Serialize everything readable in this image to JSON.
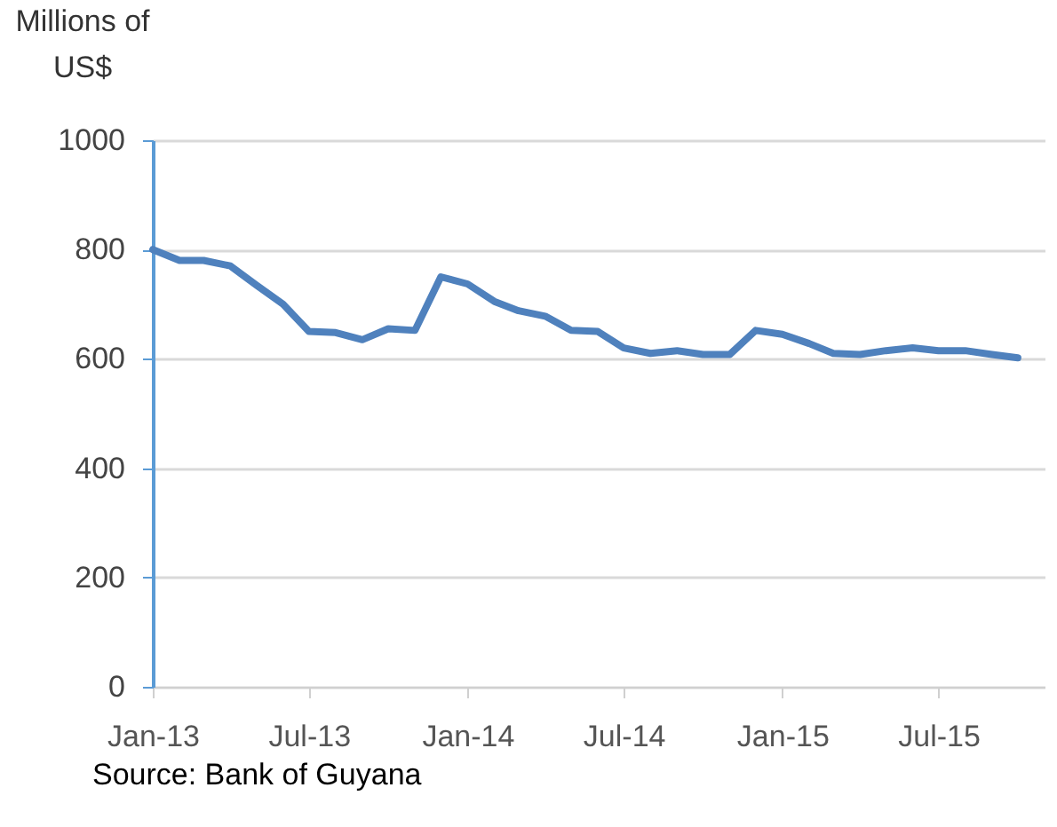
{
  "chart_data": {
    "type": "line",
    "ylabel": "Millions of US$",
    "x": [
      "2013-01",
      "2013-02",
      "2013-03",
      "2013-04",
      "2013-05",
      "2013-06",
      "2013-07",
      "2013-08",
      "2013-09",
      "2013-10",
      "2013-11",
      "2013-12",
      "2014-01",
      "2014-02",
      "2014-03",
      "2014-04",
      "2014-05",
      "2014-06",
      "2014-07",
      "2014-08",
      "2014-09",
      "2014-10",
      "2014-11",
      "2014-12",
      "2015-01",
      "2015-02",
      "2015-03",
      "2015-04",
      "2015-05",
      "2015-06",
      "2015-07",
      "2015-08",
      "2015-09",
      "2015-10"
    ],
    "series": [
      {
        "color": "#4f81bd",
        "values": [
          800,
          780,
          780,
          770,
          735,
          700,
          650,
          648,
          635,
          655,
          652,
          750,
          737,
          705,
          688,
          678,
          652,
          650,
          620,
          610,
          615,
          608,
          608,
          652,
          645,
          628,
          610,
          608,
          615,
          620,
          615,
          615,
          608,
          602
        ]
      }
    ],
    "xlim": [
      "2013-01",
      "2015-11"
    ],
    "xticks": [
      {
        "value": "2013-01",
        "label": "Jan-13"
      },
      {
        "value": "2013-07",
        "label": "Jul-13"
      },
      {
        "value": "2014-01",
        "label": "Jan-14"
      },
      {
        "value": "2014-07",
        "label": "Jul-14"
      },
      {
        "value": "2015-01",
        "label": "Jan-15"
      },
      {
        "value": "2015-07",
        "label": "Jul-15"
      }
    ],
    "ylim": [
      0,
      1000
    ],
    "yticks": [
      0,
      200,
      400,
      600,
      800,
      1000
    ],
    "grid": "y",
    "marker": "none",
    "line_style": "solid",
    "annotations": [
      "Source: Bank of Guyana"
    ]
  }
}
